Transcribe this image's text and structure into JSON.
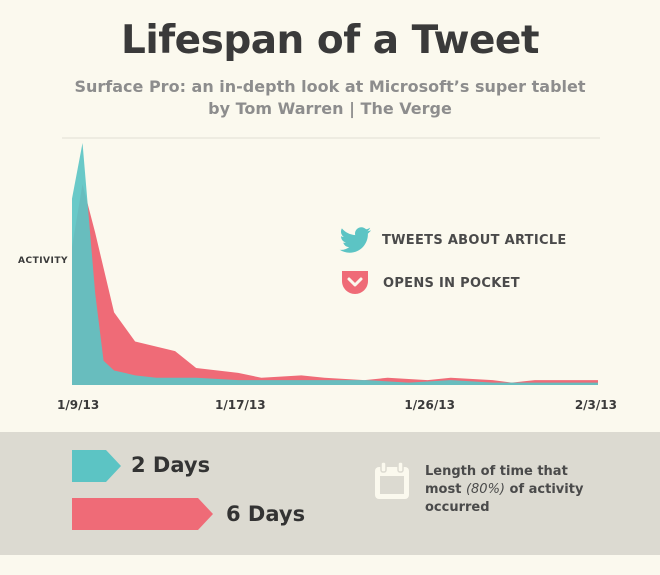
{
  "title": "Lifespan of a Tweet",
  "subtitle_line1": "Surface Pro: an in-depth look at Microsoft’s super tablet",
  "subtitle_line2": "by Tom Warren | The Verge",
  "colors": {
    "tweets": "#5cc4c4",
    "pocket": "#ef6b77",
    "overlap": "#5aaeb0",
    "band": "#dcdad1",
    "background": "#fbf9ee"
  },
  "legend": {
    "tweets_label": "TWEETS ABOUT ARTICLE",
    "tweets_icon": "twitter-bird-icon",
    "pocket_label": "OPENS IN POCKET",
    "pocket_icon": "pocket-icon"
  },
  "summary": {
    "tweets_days": "2 Days",
    "pocket_days": "6 Days",
    "tweets_span_days": 2,
    "pocket_span_days": 6,
    "note_line1": "Length of time that",
    "note_pre": "most ",
    "note_pct": "(80%)",
    "note_post": " of activity",
    "note_line3": "occurred",
    "note_icon": "calendar-icon"
  },
  "chart_data": {
    "type": "area",
    "title": "",
    "xlabel": "",
    "ylabel": "ACTIVITY",
    "x_ticks": [
      "1/9/13",
      "1/17/13",
      "1/26/13",
      "2/3/13"
    ],
    "x_tick_days": [
      0,
      8,
      17,
      25
    ],
    "xlim": [
      0,
      25
    ],
    "ylim": [
      0,
      100
    ],
    "grid": false,
    "legend_position": "right",
    "series": [
      {
        "name": "OPENS IN POCKET",
        "x": [
          0,
          0.5,
          1.1,
          2.0,
          3.0,
          4.9,
          5.9,
          7.9,
          9.0,
          10.9,
          12.0,
          13.9,
          15.0,
          16.9,
          18.0,
          20.0,
          20.9,
          22.0,
          25.0
        ],
        "values": [
          57,
          83,
          63,
          30,
          18,
          14,
          7,
          5,
          3,
          4,
          3,
          2,
          3,
          2,
          3,
          2,
          1,
          2,
          2
        ]
      },
      {
        "name": "TWEETS ABOUT ARTICLE",
        "x": [
          0,
          0.5,
          1.1,
          1.5,
          2.0,
          3.0,
          4.0,
          5.9,
          7.9,
          10.0,
          12.0,
          14.0,
          16.0,
          18.0,
          20.0,
          22.0,
          25.0
        ],
        "values": [
          77,
          100,
          38,
          10,
          6,
          4,
          3,
          3,
          2,
          2,
          2,
          2,
          1,
          2,
          1,
          1,
          1
        ]
      }
    ]
  }
}
